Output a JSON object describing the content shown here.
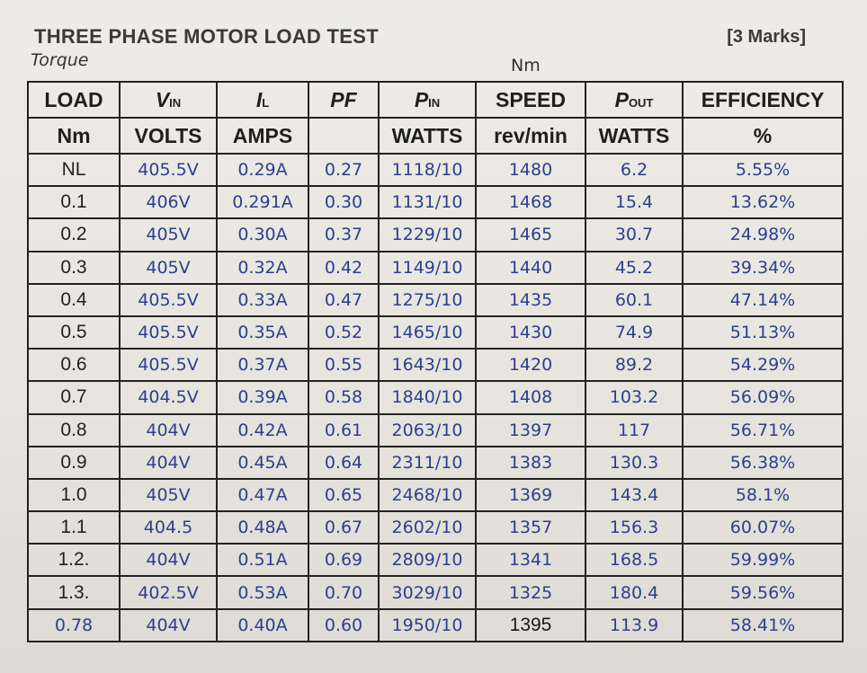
{
  "page": {
    "title": "THREE PHASE MOTOR LOAD TEST",
    "marks": "[3 Marks]",
    "note_torque": "Torque",
    "note_nm": "Nm"
  },
  "table": {
    "headers": [
      {
        "top_main": "LOAD",
        "top_sub": "",
        "bottom": "Nm"
      },
      {
        "top_main": "V",
        "top_sub": "IN",
        "bottom": "VOLTS"
      },
      {
        "top_main": "I",
        "top_sub": "L",
        "bottom": "AMPS"
      },
      {
        "top_main": "PF",
        "top_sub": "",
        "bottom": ""
      },
      {
        "top_main": "P",
        "top_sub": "IN",
        "bottom": "WATTS"
      },
      {
        "top_main": "SPEED",
        "top_sub": "",
        "bottom": "rev/min"
      },
      {
        "top_main": "P",
        "top_sub": "OUT",
        "bottom": "WATTS"
      },
      {
        "top_main": "EFFICIENCY",
        "top_sub": "",
        "bottom": "%"
      }
    ],
    "rows": [
      [
        "NL",
        "405.5V",
        "0.29A",
        "0.27",
        "1118/10",
        "1480",
        "6.2",
        "5.55%"
      ],
      [
        "0.1",
        "406V",
        "0.291A",
        "0.30",
        "1131/10",
        "1468",
        "15.4",
        "13.62%"
      ],
      [
        "0.2",
        "405V",
        "0.30A",
        "0.37",
        "1229/10",
        "1465",
        "30.7",
        "24.98%"
      ],
      [
        "0.3",
        "405V",
        "0.32A",
        "0.42",
        "1149/10",
        "1440",
        "45.2",
        "39.34%"
      ],
      [
        "0.4",
        "405.5V",
        "0.33A",
        "0.47",
        "1275/10",
        "1435",
        "60.1",
        "47.14%"
      ],
      [
        "0.5",
        "405.5V",
        "0.35A",
        "0.52",
        "1465/10",
        "1430",
        "74.9",
        "51.13%"
      ],
      [
        "0.6",
        "405.5V",
        "0.37A",
        "0.55",
        "1643/10",
        "1420",
        "89.2",
        "54.29%"
      ],
      [
        "0.7",
        "404.5V",
        "0.39A",
        "0.58",
        "1840/10",
        "1408",
        "103.2",
        "56.09%"
      ],
      [
        "0.8",
        "404V",
        "0.42A",
        "0.61",
        "2063/10",
        "1397",
        "117",
        "56.71%"
      ],
      [
        "0.9",
        "404V",
        "0.45A",
        "0.64",
        "2311/10",
        "1383",
        "130.3",
        "56.38%"
      ],
      [
        "1.0",
        "405V",
        "0.47A",
        "0.65",
        "2468/10",
        "1369",
        "143.4",
        "58.1%"
      ],
      [
        "1.1",
        "404.5",
        "0.48A",
        "0.67",
        "2602/10",
        "1357",
        "156.3",
        "60.07%"
      ],
      [
        "1.2.",
        "404V",
        "0.51A",
        "0.69",
        "2809/10",
        "1341",
        "168.5",
        "59.99%"
      ],
      [
        "1.3.",
        "402.5V",
        "0.53A",
        "0.70",
        "3029/10",
        "1325",
        "180.4",
        "59.56%"
      ],
      [
        "0.78",
        "404V",
        "0.40A",
        "0.60",
        "1950/10",
        "1395",
        "113.9",
        "58.41%"
      ]
    ]
  }
}
